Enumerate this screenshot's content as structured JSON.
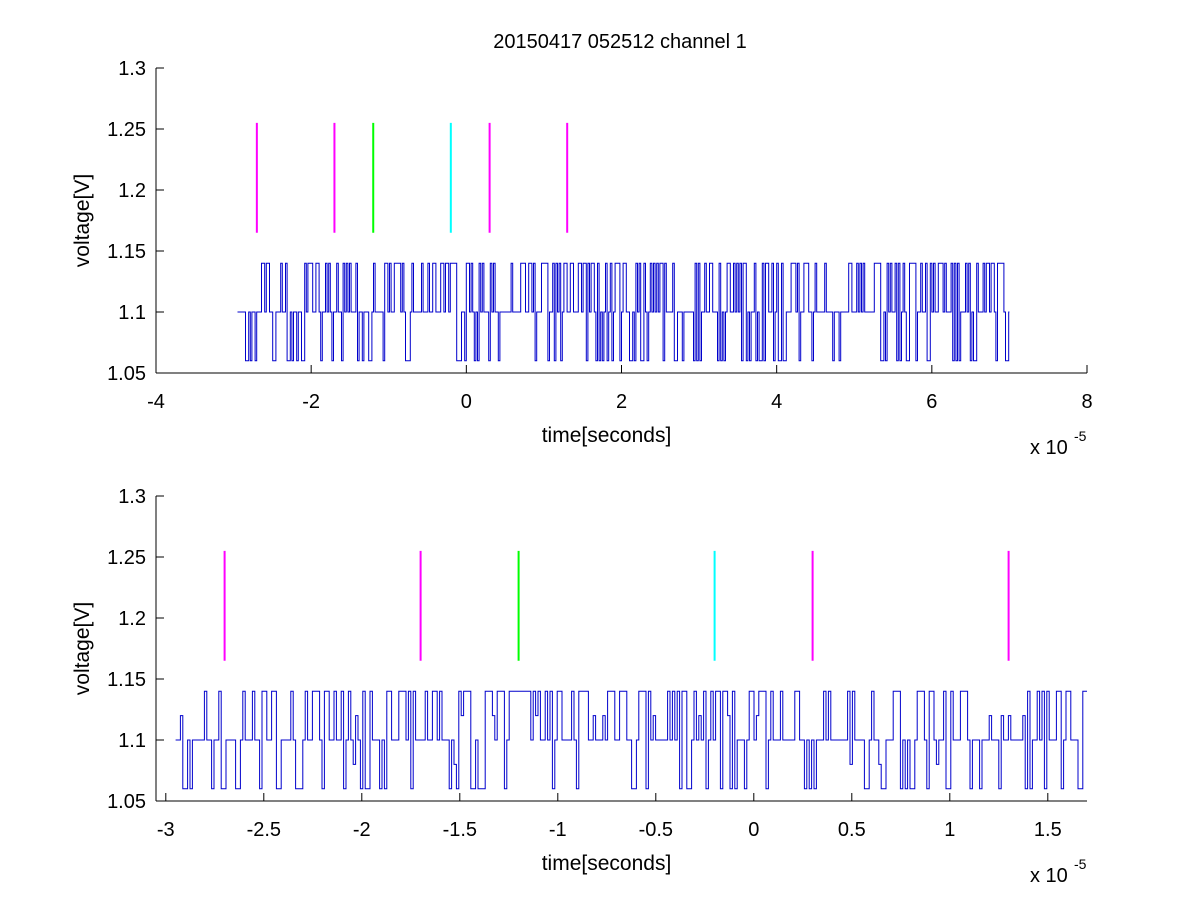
{
  "figure_title": "20150417 052512 channel 1",
  "colors": {
    "trace": "#0000CC",
    "magenta": "#FF00FF",
    "green": "#00FF00",
    "cyan": "#00FFFF",
    "axis": "#000000"
  },
  "chart_data": [
    {
      "type": "line",
      "title": "20150417 052512 channel 1",
      "xlabel": "time[seconds]",
      "ylabel": "voltage[V]",
      "x_multiplier_label": "x 10",
      "x_multiplier_exponent": "-5",
      "xlim": [
        -4,
        8
      ],
      "ylim": [
        1.05,
        1.3
      ],
      "xticks": [
        -4,
        -2,
        0,
        2,
        4,
        6,
        8
      ],
      "xtick_labels": [
        "-4",
        "-2",
        "0",
        "2",
        "4",
        "6",
        "8"
      ],
      "yticks": [
        1.05,
        1.1,
        1.15,
        1.2,
        1.25,
        1.3
      ],
      "ytick_labels": [
        "1.05",
        "1.1",
        "1.15",
        "1.2",
        "1.25",
        "1.3"
      ],
      "grid": false,
      "series": [
        {
          "type": "signal",
          "x_range": [
            -2.95,
            7.0
          ],
          "base": 1.1,
          "levels": [
            1.06,
            1.1,
            1.14
          ],
          "seed": 11,
          "color": "#0000CC"
        }
      ],
      "markers": [
        {
          "x": -2.7,
          "y_range": [
            1.165,
            1.255
          ],
          "color": "#FF00FF"
        },
        {
          "x": -1.7,
          "y_range": [
            1.165,
            1.255
          ],
          "color": "#FF00FF"
        },
        {
          "x": -1.2,
          "y_range": [
            1.165,
            1.255
          ],
          "color": "#00FF00"
        },
        {
          "x": -0.2,
          "y_range": [
            1.165,
            1.255
          ],
          "color": "#00FFFF"
        },
        {
          "x": 0.3,
          "y_range": [
            1.165,
            1.255
          ],
          "color": "#FF00FF"
        },
        {
          "x": 1.3,
          "y_range": [
            1.165,
            1.255
          ],
          "color": "#FF00FF"
        }
      ]
    },
    {
      "type": "line",
      "title": "",
      "xlabel": "time[seconds]",
      "ylabel": "voltage[V]",
      "x_multiplier_label": "x 10",
      "x_multiplier_exponent": "-5",
      "xlim": [
        -3.05,
        1.7
      ],
      "ylim": [
        1.05,
        1.3
      ],
      "xticks": [
        -3,
        -2.5,
        -2,
        -1.5,
        -1,
        -0.5,
        0,
        0.5,
        1,
        1.5
      ],
      "xtick_labels": [
        "-3",
        "-2.5",
        "-2",
        "-1.5",
        "-1",
        "-0.5",
        "0",
        "0.5",
        "1",
        "1.5"
      ],
      "yticks": [
        1.05,
        1.1,
        1.15,
        1.2,
        1.25,
        1.3
      ],
      "ytick_labels": [
        "1.05",
        "1.1",
        "1.15",
        "1.2",
        "1.25",
        "1.3"
      ],
      "grid": false,
      "series": [
        {
          "type": "signal",
          "x_range": [
            -2.95,
            1.7
          ],
          "base": 1.1,
          "levels": [
            1.06,
            1.08,
            1.1,
            1.12,
            1.14
          ],
          "seed": 29,
          "color": "#0000CC"
        }
      ],
      "markers": [
        {
          "x": -2.7,
          "y_range": [
            1.165,
            1.255
          ],
          "color": "#FF00FF"
        },
        {
          "x": -1.7,
          "y_range": [
            1.165,
            1.255
          ],
          "color": "#FF00FF"
        },
        {
          "x": -1.2,
          "y_range": [
            1.165,
            1.255
          ],
          "color": "#00FF00"
        },
        {
          "x": -0.2,
          "y_range": [
            1.165,
            1.255
          ],
          "color": "#00FFFF"
        },
        {
          "x": 0.3,
          "y_range": [
            1.165,
            1.255
          ],
          "color": "#FF00FF"
        },
        {
          "x": 1.3,
          "y_range": [
            1.165,
            1.255
          ],
          "color": "#FF00FF"
        }
      ]
    }
  ]
}
